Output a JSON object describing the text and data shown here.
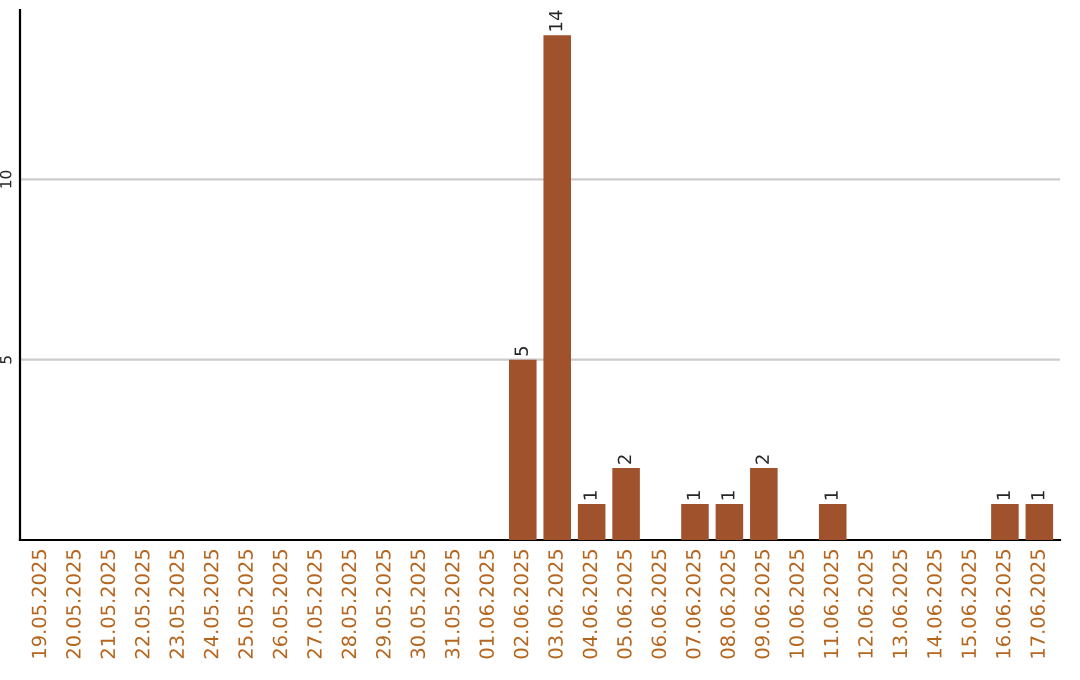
{
  "chart_data": {
    "type": "bar",
    "categories": [
      "19.05.2025",
      "20.05.2025",
      "21.05.2025",
      "22.05.2025",
      "23.05.2025",
      "24.05.2025",
      "25.05.2025",
      "26.05.2025",
      "27.05.2025",
      "28.05.2025",
      "29.05.2025",
      "30.05.2025",
      "31.05.2025",
      "01.06.2025",
      "02.06.2025",
      "03.06.2025",
      "04.06.2025",
      "05.06.2025",
      "06.06.2025",
      "07.06.2025",
      "08.06.2025",
      "09.06.2025",
      "10.06.2025",
      "11.06.2025",
      "12.06.2025",
      "13.06.2025",
      "14.06.2025",
      "15.06.2025",
      "16.06.2025",
      "17.06.2025"
    ],
    "values": [
      0,
      0,
      0,
      0,
      0,
      0,
      0,
      0,
      0,
      0,
      0,
      0,
      0,
      0,
      5,
      14,
      1,
      2,
      0,
      1,
      1,
      2,
      0,
      1,
      0,
      0,
      0,
      0,
      1,
      1
    ],
    "value_labels": [
      null,
      null,
      null,
      null,
      null,
      null,
      null,
      null,
      null,
      null,
      null,
      null,
      null,
      null,
      "5",
      "14",
      "1",
      "2",
      null,
      "1",
      "1",
      "2",
      null,
      "1",
      null,
      null,
      null,
      null,
      "1",
      "1"
    ],
    "color": "#a0522d",
    "ylim": [
      0,
      14.7
    ],
    "yticks": [
      5,
      10
    ],
    "grid": "y"
  }
}
